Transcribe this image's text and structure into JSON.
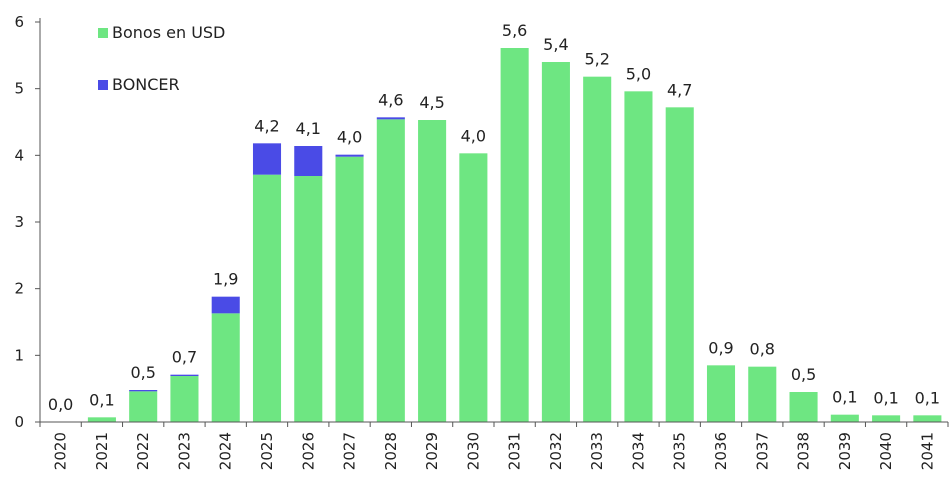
{
  "chart_data": {
    "type": "bar",
    "stacked": true,
    "categories": [
      "2020",
      "2021",
      "2022",
      "2023",
      "2024",
      "2025",
      "2026",
      "2027",
      "2028",
      "2029",
      "2030",
      "2031",
      "2032",
      "2033",
      "2034",
      "2035",
      "2036",
      "2037",
      "2038",
      "2039",
      "2040",
      "2041"
    ],
    "series": [
      {
        "name": "Bonos en USD",
        "color": "#6ee682",
        "values": [
          0.0,
          0.07,
          0.46,
          0.69,
          1.63,
          3.71,
          3.69,
          3.98,
          4.54,
          4.53,
          4.03,
          5.61,
          5.4,
          5.18,
          4.96,
          4.72,
          0.85,
          0.83,
          0.45,
          0.11,
          0.1,
          0.1
        ]
      },
      {
        "name": "BONCER",
        "color": "#4a4be6",
        "values": [
          0.0,
          0.0,
          0.02,
          0.02,
          0.25,
          0.47,
          0.45,
          0.03,
          0.03,
          0.0,
          0.0,
          0.0,
          0.0,
          0.0,
          0.0,
          0.0,
          0.0,
          0.0,
          0.0,
          0.0,
          0.0,
          0.0
        ]
      }
    ],
    "totals_labels": [
      "0,0",
      "0,1",
      "0,5",
      "0,7",
      "1,9",
      "4,2",
      "4,1",
      "4,0",
      "4,6",
      "4,5",
      "4,0",
      "5,6",
      "5,4",
      "5,2",
      "5,0",
      "4,7",
      "0,9",
      "0,8",
      "0,5",
      "0,1",
      "0,1",
      "0,1"
    ],
    "ylim": [
      0,
      6
    ],
    "yticks": [
      "0",
      "1",
      "2",
      "3",
      "4",
      "5",
      "6"
    ],
    "title": "",
    "xlabel": "",
    "ylabel": "",
    "grid": false,
    "legend_position": "top-left"
  }
}
